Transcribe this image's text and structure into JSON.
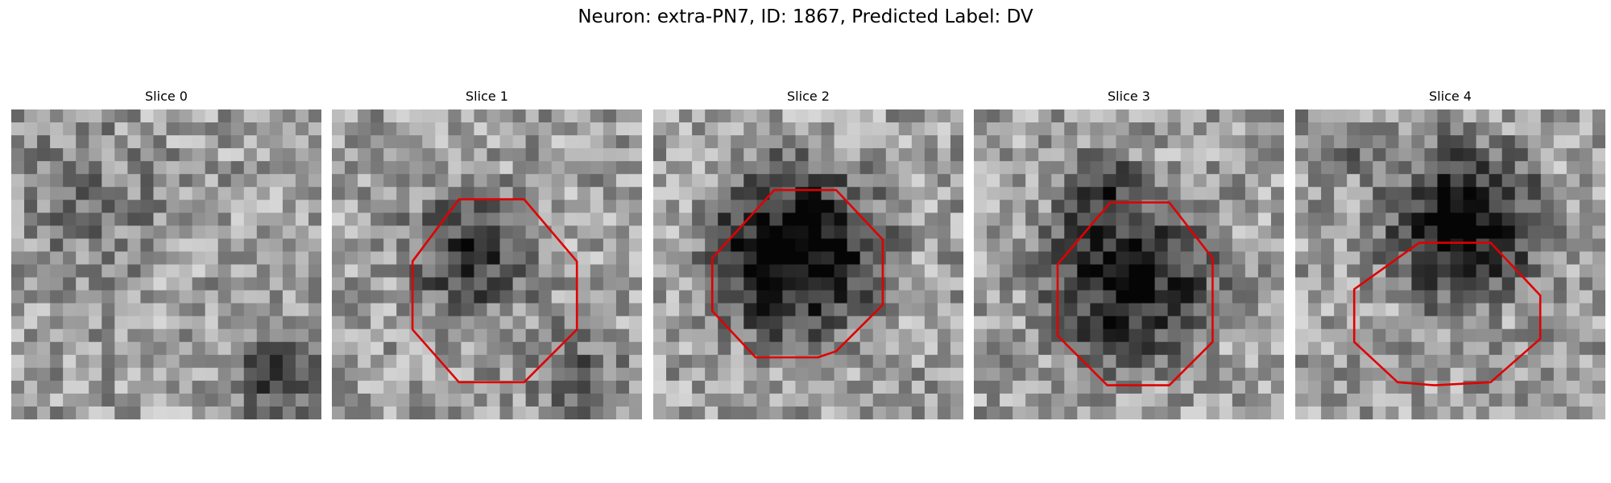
{
  "suptitle": "Neuron: extra-PN7, ID: 1867, Predicted Label: DV",
  "contour_color": "#e00000",
  "panels": [
    {
      "title": "Slice 0",
      "contour": null
    },
    {
      "title": "Slice 1",
      "contour": [
        [
          0.41,
          0.29
        ],
        [
          0.62,
          0.29
        ],
        [
          0.79,
          0.49
        ],
        [
          0.79,
          0.71
        ],
        [
          0.62,
          0.88
        ],
        [
          0.41,
          0.88
        ],
        [
          0.26,
          0.71
        ],
        [
          0.26,
          0.49
        ]
      ]
    },
    {
      "title": "Slice 2",
      "contour": [
        [
          0.39,
          0.26
        ],
        [
          0.59,
          0.26
        ],
        [
          0.74,
          0.42
        ],
        [
          0.74,
          0.63
        ],
        [
          0.59,
          0.78
        ],
        [
          0.53,
          0.8
        ],
        [
          0.33,
          0.8
        ],
        [
          0.19,
          0.65
        ],
        [
          0.19,
          0.48
        ]
      ]
    },
    {
      "title": "Slice 3",
      "contour": [
        [
          0.44,
          0.3
        ],
        [
          0.63,
          0.3
        ],
        [
          0.77,
          0.48
        ],
        [
          0.77,
          0.75
        ],
        [
          0.63,
          0.89
        ],
        [
          0.43,
          0.89
        ],
        [
          0.27,
          0.73
        ],
        [
          0.27,
          0.5
        ]
      ]
    },
    {
      "title": "Slice 4",
      "contour": [
        [
          0.4,
          0.43
        ],
        [
          0.63,
          0.43
        ],
        [
          0.79,
          0.6
        ],
        [
          0.79,
          0.74
        ],
        [
          0.63,
          0.88
        ],
        [
          0.45,
          0.89
        ],
        [
          0.33,
          0.88
        ],
        [
          0.19,
          0.75
        ],
        [
          0.19,
          0.58
        ]
      ]
    }
  ]
}
